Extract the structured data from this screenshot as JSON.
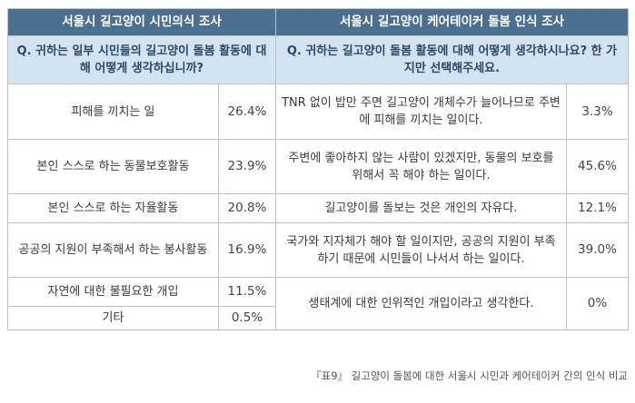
{
  "left_survey": {
    "title": "서울시 길고양이 시민의식 조사",
    "question": "Q. 귀하는 일부 시민들의 길고양이 돌봄 활동에 대해 어떻게 생각하십니까?",
    "rows": [
      {
        "label": "피해를 끼치는 일",
        "value": "26.4%"
      },
      {
        "label": "본인 스스로 하는 동물보호활동",
        "value": "23.9%"
      },
      {
        "label": "본인 스스로 하는 자율활동",
        "value": "20.8%"
      },
      {
        "label": "공공의 지원이 부족해서 하는 봉사활동",
        "value": "16.9%"
      },
      {
        "label": "자연에 대한 불필요한 개입",
        "value": "11.5%"
      },
      {
        "label": "기타",
        "value": "0.5%"
      }
    ]
  },
  "right_survey": {
    "title": "서울시 길고양이 케어테이커 돌봄 인식 조사",
    "question": "Q. 귀하는 길고양이 돌봄 활동에 대해 어떻게 생각하시나요? 한 가지만 선택해주세요.",
    "rows": [
      {
        "label": "TNR 없이 밥만 주면 길고양이 개체수가 늘어나므로 주변에 피해를 끼치는 일이다.",
        "value": "3.3%"
      },
      {
        "label": "주변에 좋아하지 않는 사람이 있겠지만, 동물의 보호를 위해서 꼭 해야 하는 일이다.",
        "value": "45.6%"
      },
      {
        "label": "길고양이를 돌보는 것은 개인의 자유다.",
        "value": "12.1%"
      },
      {
        "label": "국가와 지자체가 해야 할 일이지만, 공공의 지원이 부족하기 때문에 시민들이 나서서 하는 일이다.",
        "value": "39.0%"
      },
      {
        "label": "생태계에 대한 인위적인 개입이라고 생각한다.",
        "value": "0%"
      }
    ]
  },
  "caption": "『표9』 길고양이 돌봄에 대한 서울시 시민과 케어테이커 간의 인식 비교"
}
